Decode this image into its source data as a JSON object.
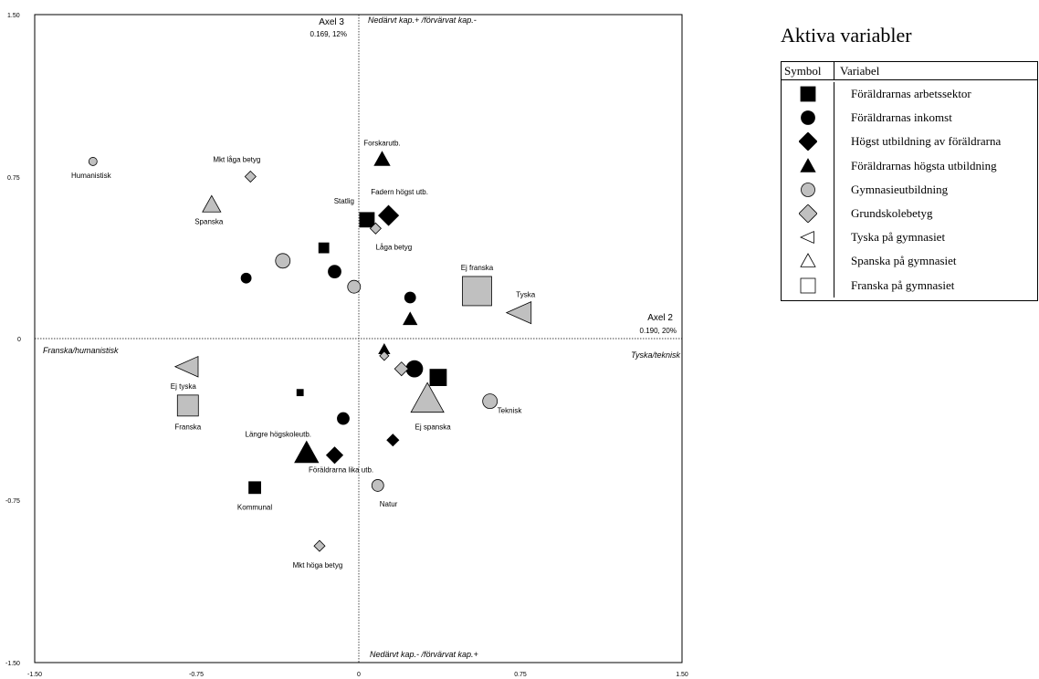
{
  "chart_data": {
    "type": "scatter",
    "xlabel": "Axel 2",
    "xlabel_sub": "0.190, 20%",
    "ylabel": "Axel 3",
    "ylabel_sub": "0.169, 12%",
    "xlim": [
      -1.5,
      1.5
    ],
    "ylim": [
      -1.5,
      1.5
    ],
    "xticks": [
      "-1.50",
      "-0.75",
      "0",
      "0.75",
      "1.50"
    ],
    "yticks": [
      "1.50",
      "0.75",
      "0",
      "-0.75",
      "-1.50"
    ],
    "pole_labels": {
      "top": "Nedärvt kap.+ /förvärvat kap.-",
      "bottom": "Nedärvt kap.- /förvärvat kap.+",
      "left": "Franska/humanistisk",
      "right": "Tyska/teknisk"
    },
    "points": [
      {
        "variable": "Föräldrarnas arbetssektor",
        "shape": "square",
        "fill": "black",
        "x": 0.04,
        "y": 0.55,
        "size": 16,
        "label": "Statlig"
      },
      {
        "variable": "Föräldrarnas arbetssektor",
        "shape": "square",
        "fill": "black",
        "x": -0.16,
        "y": 0.42,
        "size": 11,
        "label": ""
      },
      {
        "variable": "Föräldrarnas arbetssektor",
        "shape": "square",
        "fill": "black",
        "x": -0.27,
        "y": -0.25,
        "size": 7,
        "label": ""
      },
      {
        "variable": "Föräldrarnas arbetssektor",
        "shape": "square",
        "fill": "black",
        "x": 0.37,
        "y": -0.18,
        "size": 18,
        "label": ""
      },
      {
        "variable": "Föräldrarnas arbetssektor",
        "shape": "square",
        "fill": "black",
        "x": -0.48,
        "y": -0.69,
        "size": 13,
        "label": "Kommunal"
      },
      {
        "variable": "Föräldrarnas inkomst",
        "shape": "circle",
        "fill": "black",
        "x": -0.52,
        "y": 0.28,
        "size": 11,
        "label": ""
      },
      {
        "variable": "Föräldrarnas inkomst",
        "shape": "circle",
        "fill": "black",
        "x": -0.11,
        "y": 0.31,
        "size": 14,
        "label": ""
      },
      {
        "variable": "Föräldrarnas inkomst",
        "shape": "circle",
        "fill": "black",
        "x": 0.24,
        "y": 0.19,
        "size": 12,
        "label": ""
      },
      {
        "variable": "Föräldrarnas inkomst",
        "shape": "circle",
        "fill": "black",
        "x": 0.26,
        "y": -0.14,
        "size": 18,
        "label": ""
      },
      {
        "variable": "Föräldrarnas inkomst",
        "shape": "circle",
        "fill": "black",
        "x": -0.07,
        "y": -0.37,
        "size": 13,
        "label": ""
      },
      {
        "variable": "Högst utbildning av föräldrarna",
        "shape": "diamond",
        "fill": "black",
        "x": 0.14,
        "y": 0.57,
        "size": 22,
        "label": "Fadern högst utb."
      },
      {
        "variable": "Högst utbildning av föräldrarna",
        "shape": "diamond",
        "fill": "black",
        "x": 0.16,
        "y": -0.47,
        "size": 13,
        "label": ""
      },
      {
        "variable": "Högst utbildning av föräldrarna",
        "shape": "diamond",
        "fill": "black",
        "x": -0.11,
        "y": -0.54,
        "size": 18,
        "label": ""
      },
      {
        "variable": "Föräldrarnas högsta utbildning",
        "shape": "triangle",
        "fill": "black",
        "x": 0.11,
        "y": 0.83,
        "size": 17,
        "label": "Forskarutb."
      },
      {
        "variable": "Föräldrarnas högsta utbildning",
        "shape": "triangle",
        "fill": "black",
        "x": 0.24,
        "y": 0.09,
        "size": 15,
        "label": ""
      },
      {
        "variable": "Föräldrarnas högsta utbildning",
        "shape": "triangle",
        "fill": "black",
        "x": 0.12,
        "y": -0.05,
        "size": 12,
        "label": ""
      },
      {
        "variable": "Föräldrarnas högsta utbildning",
        "shape": "triangle",
        "fill": "black",
        "x": -0.24,
        "y": -0.53,
        "size": 26,
        "label": "Längre högskoleutb."
      },
      {
        "variable": "Gymnasieutbildning",
        "shape": "circle",
        "fill": "gray",
        "x": -1.23,
        "y": 0.82,
        "size": 9,
        "label": "Humanistisk"
      },
      {
        "variable": "Gymnasieutbildning",
        "shape": "circle",
        "fill": "gray",
        "x": -0.35,
        "y": 0.36,
        "size": 16,
        "label": ""
      },
      {
        "variable": "Gymnasieutbildning",
        "shape": "circle",
        "fill": "gray",
        "x": -0.02,
        "y": 0.24,
        "size": 14,
        "label": ""
      },
      {
        "variable": "Gymnasieutbildning",
        "shape": "circle",
        "fill": "gray",
        "x": 0.61,
        "y": -0.29,
        "size": 16,
        "label": "Teknisk"
      },
      {
        "variable": "Gymnasieutbildning",
        "shape": "circle",
        "fill": "gray",
        "x": 0.09,
        "y": -0.68,
        "size": 13,
        "label": "Natur"
      },
      {
        "variable": "Grundskolebetyg",
        "shape": "diamond",
        "fill": "gray",
        "x": -0.5,
        "y": 0.75,
        "size": 12,
        "label": "Mkt låga betyg"
      },
      {
        "variable": "Grundskolebetyg",
        "shape": "diamond",
        "fill": "gray",
        "x": 0.08,
        "y": 0.51,
        "size": 12,
        "label": "Låga betyg"
      },
      {
        "variable": "Grundskolebetyg",
        "shape": "diamond",
        "fill": "gray",
        "x": 0.12,
        "y": -0.08,
        "size": 10,
        "label": ""
      },
      {
        "variable": "Grundskolebetyg",
        "shape": "diamond",
        "fill": "gray",
        "x": 0.2,
        "y": -0.14,
        "size": 15,
        "label": ""
      },
      {
        "variable": "Grundskolebetyg",
        "shape": "diamond",
        "fill": "gray",
        "x": -0.18,
        "y": -0.96,
        "size": 12,
        "label": "Mkt höga betyg"
      },
      {
        "variable": "Tyska på gymnasiet",
        "shape": "triangle-left",
        "fill": "gray",
        "x": 0.75,
        "y": 0.12,
        "size": 30,
        "label": "Tyska"
      },
      {
        "variable": "Tyska på gymnasiet",
        "shape": "triangle-left",
        "fill": "gray",
        "x": -0.79,
        "y": -0.13,
        "size": 28,
        "label": "Ej tyska"
      },
      {
        "variable": "Spanska på gymnasiet",
        "shape": "triangle",
        "fill": "gray",
        "x": -0.68,
        "y": 0.62,
        "size": 20,
        "label": "Spanska"
      },
      {
        "variable": "Spanska på gymnasiet",
        "shape": "triangle",
        "fill": "gray",
        "x": 0.32,
        "y": -0.28,
        "size": 36,
        "label": "Ej spanska"
      },
      {
        "variable": "Franska på gymnasiet",
        "shape": "square",
        "fill": "gray",
        "x": 0.55,
        "y": 0.22,
        "size": 32,
        "label": "Ej franska"
      },
      {
        "variable": "Franska på gymnasiet",
        "shape": "square",
        "fill": "gray",
        "x": -0.79,
        "y": -0.31,
        "size": 23,
        "label": "Franska"
      }
    ],
    "annotations": [
      {
        "text": "Föräldrarna lika utb.",
        "x": -0.08,
        "y": -0.62
      }
    ]
  },
  "legend": {
    "title": "Aktiva variabler",
    "col_symbol": "Symbol",
    "col_variable": "Variabel",
    "items": [
      {
        "shape": "square",
        "fill": "black",
        "label": "Föräldrarnas arbetssektor"
      },
      {
        "shape": "circle",
        "fill": "black",
        "label": "Föräldrarnas inkomst"
      },
      {
        "shape": "diamond",
        "fill": "black",
        "label": "Högst utbildning av föräldrarna"
      },
      {
        "shape": "triangle",
        "fill": "black",
        "label": "Föräldrarnas högsta utbildning"
      },
      {
        "shape": "circle",
        "fill": "gray",
        "label": "Gymnasieutbildning"
      },
      {
        "shape": "diamond",
        "fill": "gray",
        "label": "Grundskolebetyg"
      },
      {
        "shape": "triangle-left",
        "fill": "white",
        "label": "Tyska på gymnasiet"
      },
      {
        "shape": "triangle",
        "fill": "white",
        "label": "Spanska på gymnasiet"
      },
      {
        "shape": "square",
        "fill": "white",
        "label": "Franska på gymnasiet"
      }
    ]
  },
  "colors": {
    "black": "#000000",
    "gray": "#c0c0c0",
    "white": "#ffffff"
  }
}
